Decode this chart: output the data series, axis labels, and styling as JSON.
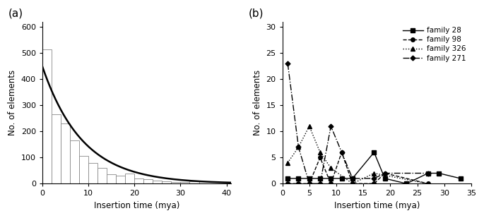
{
  "panel_a": {
    "bar_edges": [
      0,
      2,
      4,
      6,
      8,
      10,
      12,
      14,
      16,
      18,
      20,
      22,
      24,
      26,
      28,
      30,
      32,
      34,
      40
    ],
    "bar_heights": [
      515,
      265,
      230,
      165,
      105,
      80,
      60,
      35,
      30,
      40,
      20,
      18,
      12,
      10,
      7,
      5,
      8
    ],
    "decay_a": 450,
    "decay_b": 0.115,
    "xlim": [
      0,
      41
    ],
    "ylim": [
      0,
      620
    ],
    "yticks": [
      0,
      100,
      200,
      300,
      400,
      500,
      600
    ],
    "xticks": [
      0,
      10,
      20,
      30,
      40
    ],
    "xlabel": "Insertion time (mya)",
    "ylabel": "No. of elements",
    "label": "(a)"
  },
  "panel_b": {
    "family28": {
      "x": [
        1,
        3,
        5,
        7,
        9,
        11,
        13,
        17,
        19,
        23,
        27,
        29,
        33
      ],
      "y": [
        1,
        1,
        1,
        1,
        1,
        1,
        1,
        6,
        1,
        0,
        2,
        2,
        1
      ]
    },
    "family98": {
      "x": [
        1,
        3,
        5,
        7,
        9,
        11,
        13,
        17,
        19,
        27
      ],
      "y": [
        0,
        0,
        0,
        5,
        0,
        6,
        0,
        0,
        2,
        0
      ]
    },
    "family326": {
      "x": [
        1,
        3,
        5,
        7,
        9,
        13,
        17,
        27
      ],
      "y": [
        4,
        7,
        11,
        6,
        3,
        0,
        2,
        0
      ]
    },
    "family271": {
      "x": [
        1,
        3,
        5,
        7,
        9,
        11,
        13,
        17,
        19,
        27
      ],
      "y": [
        23,
        7,
        0,
        0,
        11,
        6,
        1,
        1,
        2,
        2
      ]
    },
    "xlim": [
      0,
      35
    ],
    "ylim": [
      0,
      31
    ],
    "yticks": [
      0,
      5,
      10,
      15,
      20,
      25,
      30
    ],
    "xticks": [
      0,
      5,
      10,
      15,
      20,
      25,
      30,
      35
    ],
    "xlabel": "Insertion time (mya)",
    "ylabel": "No. of elements",
    "label": "(b)"
  },
  "bar_color": "#ffffff",
  "bar_edge_color": "#888888",
  "line_color": "#000000"
}
